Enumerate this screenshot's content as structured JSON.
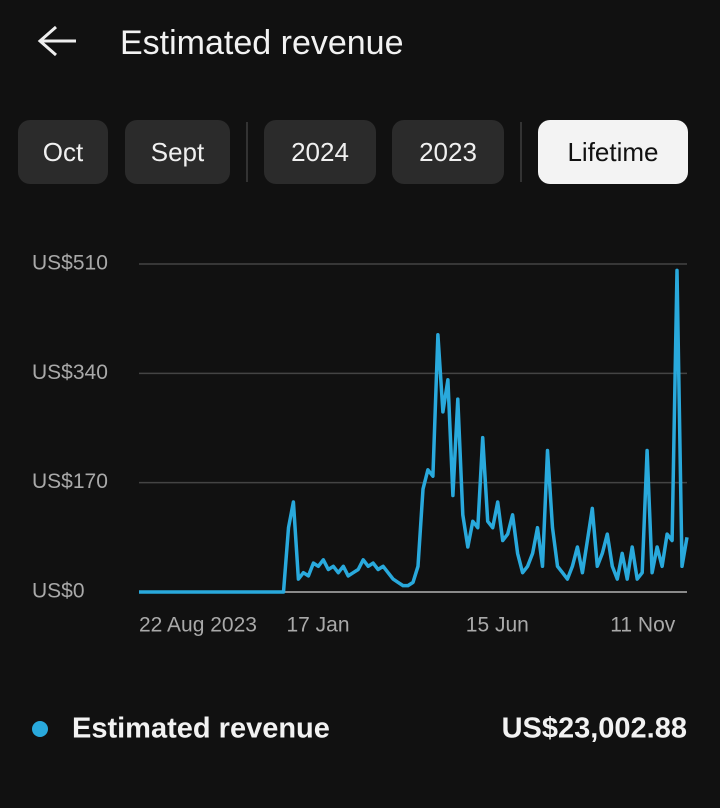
{
  "header": {
    "title": "Estimated revenue"
  },
  "filters": [
    {
      "label": "Oct"
    },
    {
      "label": "Sept"
    },
    {
      "label": "2024"
    },
    {
      "label": "2023"
    },
    {
      "label": "Lifetime",
      "selected": true
    }
  ],
  "chart_data": {
    "type": "line",
    "categories": [
      "22 Aug 2023",
      null,
      null,
      null,
      null,
      null,
      null,
      null,
      null,
      null,
      null,
      null,
      null,
      null,
      null,
      null,
      null,
      null,
      null,
      null,
      null,
      null,
      null,
      null,
      null,
      null,
      null,
      null,
      null,
      null,
      "17 Jan",
      null,
      null,
      null,
      null,
      null,
      null,
      null,
      null,
      null,
      null,
      null,
      null,
      null,
      null,
      null,
      null,
      null,
      null,
      null,
      null,
      null,
      null,
      null,
      null,
      null,
      null,
      null,
      null,
      null,
      null,
      null,
      null,
      null,
      null,
      null,
      "15 Jun",
      null,
      null,
      null,
      null,
      null,
      null,
      null,
      null,
      null,
      null,
      null,
      null,
      null,
      null,
      null,
      null,
      null,
      null,
      null,
      null,
      null,
      null,
      null,
      null,
      null,
      null,
      null,
      null,
      "11 Nov",
      null,
      null,
      null,
      null,
      null,
      null,
      null,
      null,
      null,
      null,
      null,
      null,
      null,
      null,
      null
    ],
    "series": [
      {
        "name": "Estimated revenue",
        "color": "#29a9dc",
        "values": [
          0,
          0,
          0,
          0,
          0,
          0,
          0,
          0,
          0,
          0,
          0,
          0,
          0,
          0,
          0,
          0,
          0,
          0,
          0,
          0,
          0,
          0,
          0,
          0,
          0,
          0,
          0,
          0,
          0,
          0,
          100,
          140,
          20,
          30,
          25,
          45,
          40,
          50,
          35,
          40,
          30,
          40,
          25,
          30,
          35,
          50,
          40,
          45,
          35,
          40,
          30,
          20,
          15,
          10,
          10,
          15,
          40,
          160,
          190,
          180,
          400,
          280,
          330,
          150,
          300,
          120,
          70,
          110,
          100,
          240,
          110,
          100,
          140,
          80,
          90,
          120,
          60,
          30,
          40,
          60,
          100,
          40,
          220,
          100,
          40,
          30,
          20,
          40,
          70,
          30,
          80,
          130,
          40,
          60,
          90,
          40,
          20,
          60,
          20,
          70,
          20,
          30,
          220,
          30,
          70,
          40,
          90,
          80,
          500,
          40,
          85
        ]
      }
    ],
    "ylim": [
      0,
      510
    ],
    "yticks": [
      {
        "value": 0,
        "label": "US$0"
      },
      {
        "value": 170,
        "label": "US$170"
      },
      {
        "value": 340,
        "label": "US$340"
      },
      {
        "value": 510,
        "label": "US$510"
      }
    ],
    "grid": true
  },
  "summary": {
    "total": "US$23,002.88"
  }
}
